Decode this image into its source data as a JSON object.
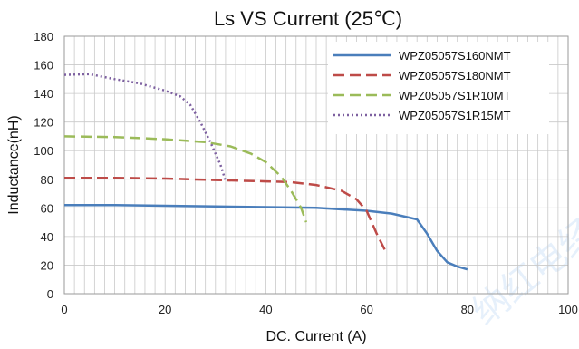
{
  "chart_data": {
    "type": "line",
    "title": "Ls  VS  Current  (25℃)",
    "xlabel": "DC. Current (A)",
    "ylabel": "Inductance(nH)",
    "xlim": [
      0,
      100
    ],
    "ylim": [
      0,
      180
    ],
    "x_ticks": [
      0,
      20,
      40,
      60,
      80,
      100
    ],
    "y_ticks": [
      0,
      20,
      40,
      60,
      80,
      100,
      120,
      140,
      160,
      180
    ],
    "grid": true,
    "legend_position": "top-right",
    "series": [
      {
        "name": "WPZ05057S160NMT",
        "color": "#4a7ebb",
        "style": "solid",
        "points": [
          [
            0,
            62
          ],
          [
            10,
            62
          ],
          [
            20,
            61.5
          ],
          [
            30,
            61
          ],
          [
            40,
            60.5
          ],
          [
            50,
            60
          ],
          [
            60,
            58
          ],
          [
            65,
            56
          ],
          [
            70,
            52
          ],
          [
            72,
            42
          ],
          [
            74,
            30
          ],
          [
            76,
            22
          ],
          [
            78,
            19
          ],
          [
            80,
            17
          ]
        ]
      },
      {
        "name": "WPZ05057S180NMT",
        "color": "#be4b48",
        "style": "dashed",
        "points": [
          [
            0,
            81
          ],
          [
            10,
            81
          ],
          [
            20,
            80.5
          ],
          [
            30,
            79.5
          ],
          [
            40,
            78.5
          ],
          [
            45,
            78
          ],
          [
            50,
            76
          ],
          [
            55,
            72
          ],
          [
            58,
            66
          ],
          [
            60,
            58
          ],
          [
            62,
            42
          ],
          [
            64,
            28
          ]
        ]
      },
      {
        "name": "WPZ05057S1R10MT",
        "color": "#9bbb59",
        "style": "dashed",
        "points": [
          [
            0,
            110
          ],
          [
            10,
            109.5
          ],
          [
            20,
            108
          ],
          [
            28,
            106
          ],
          [
            33,
            103
          ],
          [
            37,
            98
          ],
          [
            40,
            92
          ],
          [
            43,
            82
          ],
          [
            45,
            72
          ],
          [
            47,
            60
          ],
          [
            48,
            50
          ]
        ]
      },
      {
        "name": "WPZ05057S1R15MT",
        "color": "#7d60a0",
        "style": "dotted",
        "points": [
          [
            0,
            153
          ],
          [
            5,
            153.5
          ],
          [
            10,
            150
          ],
          [
            15,
            147
          ],
          [
            20,
            142
          ],
          [
            23,
            138
          ],
          [
            25,
            132
          ],
          [
            27,
            120
          ],
          [
            29,
            106
          ],
          [
            31,
            90
          ],
          [
            32,
            79
          ]
        ]
      }
    ]
  },
  "watermark": "纳红电经代理商"
}
